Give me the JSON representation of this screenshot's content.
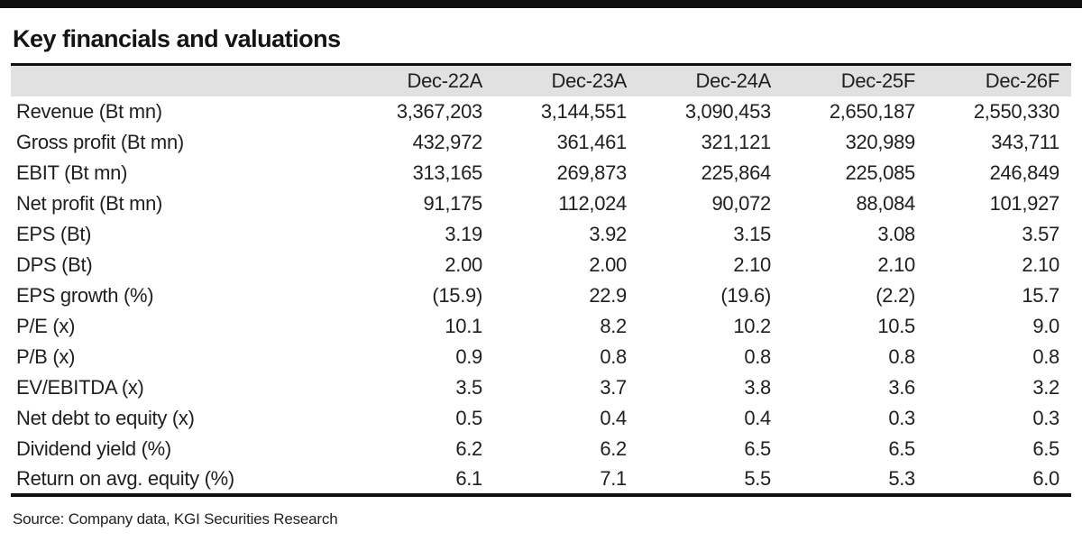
{
  "title": "Key financials and valuations",
  "source": "Source: Company data, KGI Securities Research",
  "colors": {
    "top_bar": "#101010",
    "header_band": "#e0e1e0",
    "rule": "#101010",
    "text": "#1f1f1f"
  },
  "chart_data": {
    "type": "table",
    "title": "Key financials and valuations",
    "columns": [
      "Dec-22A",
      "Dec-23A",
      "Dec-24A",
      "Dec-25F",
      "Dec-26F"
    ],
    "rows": [
      {
        "label": "Revenue (Bt mn)",
        "values": [
          "3,367,203",
          "3,144,551",
          "3,090,453",
          "2,650,187",
          "2,550,330"
        ]
      },
      {
        "label": "Gross profit (Bt mn)",
        "values": [
          "432,972",
          "361,461",
          "321,121",
          "320,989",
          "343,711"
        ]
      },
      {
        "label": "EBIT (Bt mn)",
        "values": [
          "313,165",
          "269,873",
          "225,864",
          "225,085",
          "246,849"
        ]
      },
      {
        "label": "Net profit (Bt mn)",
        "values": [
          "91,175",
          "112,024",
          "90,072",
          "88,084",
          "101,927"
        ]
      },
      {
        "label": "EPS (Bt)",
        "values": [
          "3.19",
          "3.92",
          "3.15",
          "3.08",
          "3.57"
        ]
      },
      {
        "label": "DPS (Bt)",
        "values": [
          "2.00",
          "2.00",
          "2.10",
          "2.10",
          "2.10"
        ]
      },
      {
        "label": "EPS growth (%)",
        "values": [
          "(15.9)",
          "22.9",
          "(19.6)",
          "(2.2)",
          "15.7"
        ]
      },
      {
        "label": "P/E (x)",
        "values": [
          "10.1",
          "8.2",
          "10.2",
          "10.5",
          "9.0"
        ]
      },
      {
        "label": "P/B (x)",
        "values": [
          "0.9",
          "0.8",
          "0.8",
          "0.8",
          "0.8"
        ]
      },
      {
        "label": "EV/EBITDA (x)",
        "values": [
          "3.5",
          "3.7",
          "3.8",
          "3.6",
          "3.2"
        ]
      },
      {
        "label": "Net debt to equity (x)",
        "values": [
          "0.5",
          "0.4",
          "0.4",
          "0.3",
          "0.3"
        ]
      },
      {
        "label": "Dividend yield (%)",
        "values": [
          "6.2",
          "6.2",
          "6.5",
          "6.5",
          "6.5"
        ]
      },
      {
        "label": "Return on avg. equity (%)",
        "values": [
          "6.1",
          "7.1",
          "5.5",
          "5.3",
          "6.0"
        ]
      }
    ]
  }
}
